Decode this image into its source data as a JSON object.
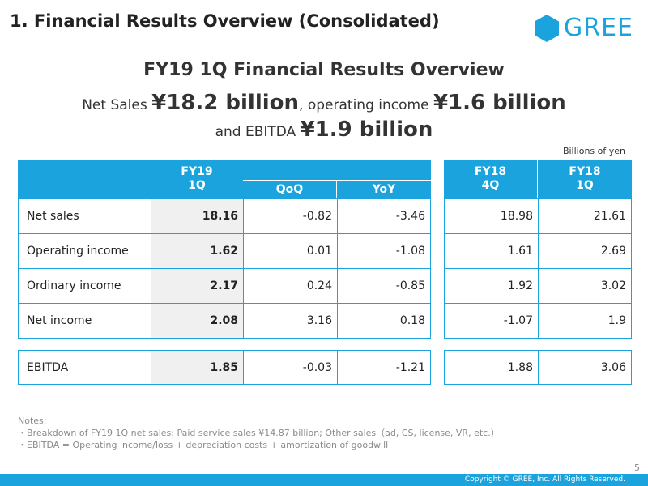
{
  "header": {
    "title": "1. Financial Results Overview (Consolidated)",
    "logo_text": "GREE"
  },
  "headline": "FY19 1Q Financial Results Overview",
  "summary": {
    "l1_a": "Net Sales ",
    "l1_b": "¥18.2 billion",
    "l1_c": ", operating income ",
    "l1_d": "¥1.6 billion",
    "l2_a": "and EBITDA ",
    "l2_b": "¥1.9 billion"
  },
  "units": "Billions of yen",
  "table": {
    "headers": {
      "fy19_1q_line1": "FY19",
      "fy19_1q_line2": "1Q",
      "qoq": "QoQ",
      "yoy": "YoY",
      "fy18_4q_line1": "FY18",
      "fy18_4q_line2": "4Q",
      "fy18_1q_line1": "FY18",
      "fy18_1q_line2": "1Q"
    },
    "rows": [
      {
        "label": "Net sales",
        "fy19_1q": "18.16",
        "qoq": "-0.82",
        "yoy": "-3.46",
        "fy18_4q": "18.98",
        "fy18_1q": "21.61"
      },
      {
        "label": "Operating income",
        "fy19_1q": "1.62",
        "qoq": "0.01",
        "yoy": "-1.08",
        "fy18_4q": "1.61",
        "fy18_1q": "2.69"
      },
      {
        "label": "Ordinary income",
        "fy19_1q": "2.17",
        "qoq": "0.24",
        "yoy": "-0.85",
        "fy18_4q": "1.92",
        "fy18_1q": "3.02"
      },
      {
        "label": "Net income",
        "fy19_1q": "2.08",
        "qoq": "3.16",
        "yoy": "0.18",
        "fy18_4q": "-1.07",
        "fy18_1q": "1.9"
      },
      {
        "label": "EBITDA",
        "fy19_1q": "1.85",
        "qoq": "-0.03",
        "yoy": "-1.21",
        "fy18_4q": "1.88",
        "fy18_1q": "3.06"
      }
    ]
  },
  "notes": {
    "title": "Notes:",
    "line1": "・Breakdown of FY19 1Q net sales: Paid service sales ¥14.87 billion; Other sales（ad, CS, license, VR, etc.）",
    "line2": "・EBITDA = Operating income/loss + depreciation costs + amortization of goodwill"
  },
  "page_number": "5",
  "footer": "Copyright © GREE, Inc. All Rights Reserved.",
  "colors": {
    "accent": "#1aa3dd"
  }
}
